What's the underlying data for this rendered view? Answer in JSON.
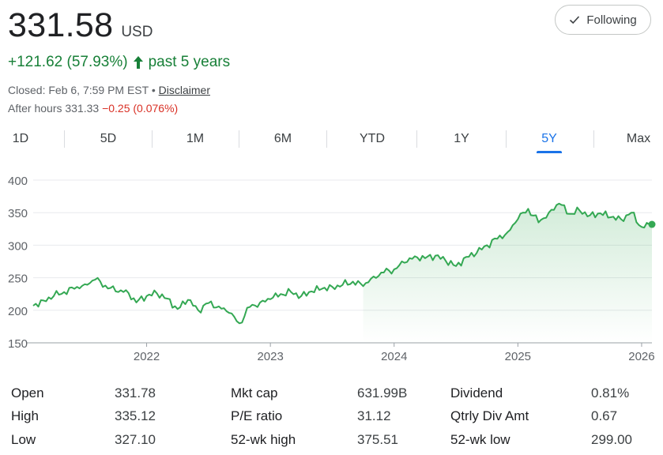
{
  "quote": {
    "price": "331.58",
    "currency": "USD",
    "change": "+121.62 (57.93%)",
    "period": "past 5 years",
    "closed_text": "Closed: Feb 6, 7:59 PM EST",
    "separator": "•",
    "disclaimer": "Disclaimer",
    "after_hours_label": "After hours 331.33",
    "after_hours_change": "−0.25 (0.076%)"
  },
  "follow_button": {
    "label": "Following",
    "icon": "check-icon"
  },
  "range_tabs": [
    "1D",
    "5D",
    "1M",
    "6M",
    "YTD",
    "1Y",
    "5Y",
    "Max"
  ],
  "active_tab": "5Y",
  "colors": {
    "up": "#188038",
    "down": "#d93025",
    "accent": "#1a73e8",
    "line": "#34a853"
  },
  "chart_data": {
    "type": "area",
    "y_ticks": [
      "400",
      "350",
      "300",
      "250",
      "200",
      "150"
    ],
    "x_ticks": [
      "2022",
      "2023",
      "2024",
      "2025",
      "2026"
    ],
    "ylim": [
      150,
      400
    ],
    "xlim": [
      "2021-02",
      "2026-02"
    ],
    "grid": true,
    "series": [
      {
        "values": [
          [
            "2021-02",
            207
          ],
          [
            "2021-03",
            215
          ],
          [
            "2021-04",
            222
          ],
          [
            "2021-05",
            228
          ],
          [
            "2021-06",
            233
          ],
          [
            "2021-07",
            240
          ],
          [
            "2021-08",
            247
          ],
          [
            "2021-09",
            238
          ],
          [
            "2021-10",
            229
          ],
          [
            "2021-11",
            231
          ],
          [
            "2021-12",
            212
          ],
          [
            "2022-01",
            222
          ],
          [
            "2022-02",
            226
          ],
          [
            "2022-03",
            218
          ],
          [
            "2022-04",
            202
          ],
          [
            "2022-05",
            216
          ],
          [
            "2022-06",
            200
          ],
          [
            "2022-07",
            211
          ],
          [
            "2022-08",
            206
          ],
          [
            "2022-09",
            196
          ],
          [
            "2022-10",
            180
          ],
          [
            "2022-11",
            205
          ],
          [
            "2022-12",
            212
          ],
          [
            "2023-01",
            217
          ],
          [
            "2023-02",
            225
          ],
          [
            "2023-03",
            228
          ],
          [
            "2023-04",
            222
          ],
          [
            "2023-05",
            229
          ],
          [
            "2023-06",
            233
          ],
          [
            "2023-07",
            236
          ],
          [
            "2023-08",
            239
          ],
          [
            "2023-09",
            244
          ],
          [
            "2023-10",
            237
          ],
          [
            "2023-11",
            252
          ],
          [
            "2023-12",
            258
          ],
          [
            "2024-01",
            263
          ],
          [
            "2024-02",
            273
          ],
          [
            "2024-03",
            283
          ],
          [
            "2024-04",
            280
          ],
          [
            "2024-05",
            284
          ],
          [
            "2024-06",
            276
          ],
          [
            "2024-07",
            268
          ],
          [
            "2024-08",
            282
          ],
          [
            "2024-09",
            288
          ],
          [
            "2024-10",
            300
          ],
          [
            "2024-11",
            310
          ],
          [
            "2024-12",
            320
          ],
          [
            "2025-01",
            340
          ],
          [
            "2025-02",
            356
          ],
          [
            "2025-03",
            335
          ],
          [
            "2025-04",
            350
          ],
          [
            "2025-05",
            364
          ],
          [
            "2025-06",
            348
          ],
          [
            "2025-07",
            353
          ],
          [
            "2025-08",
            346
          ],
          [
            "2025-09",
            349
          ],
          [
            "2025-10",
            343
          ],
          [
            "2025-11",
            340
          ],
          [
            "2025-12",
            350
          ],
          [
            "2026-01",
            328
          ],
          [
            "2026-02",
            332
          ]
        ]
      }
    ]
  },
  "stats": [
    {
      "label": "Open",
      "value": "331.78"
    },
    {
      "label": "Mkt cap",
      "value": "631.99B"
    },
    {
      "label": "Dividend",
      "value": "0.81%"
    },
    {
      "label": "High",
      "value": "335.12"
    },
    {
      "label": "P/E ratio",
      "value": "31.12"
    },
    {
      "label": "Qtrly Div Amt",
      "value": "0.67"
    },
    {
      "label": "Low",
      "value": "327.10"
    },
    {
      "label": "52-wk high",
      "value": "375.51"
    },
    {
      "label": "52-wk low",
      "value": "299.00"
    }
  ]
}
